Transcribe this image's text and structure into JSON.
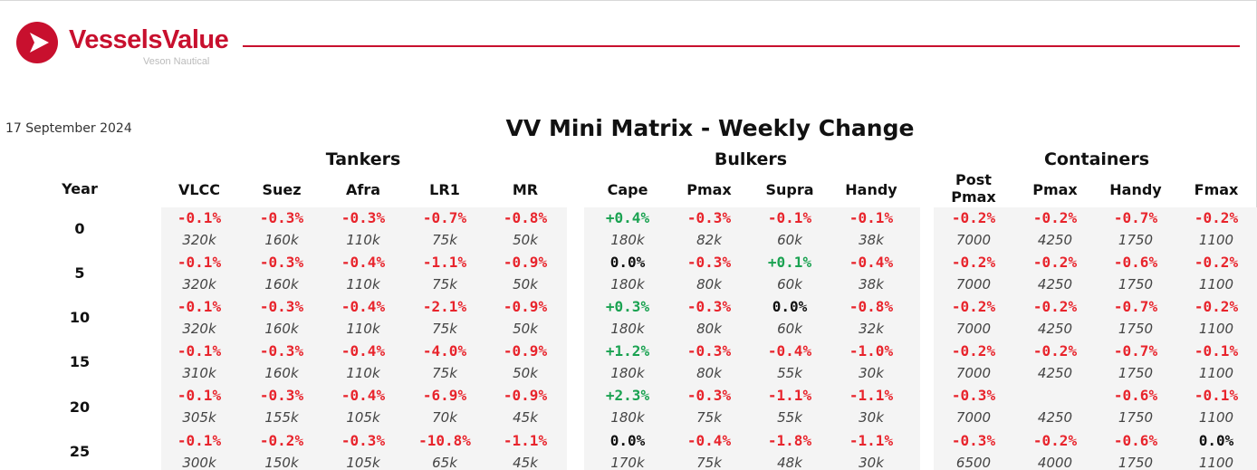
{
  "header": {
    "brand": "VesselsValue",
    "sub_brand": "Veson Nautical",
    "brand_color": "#c8102e",
    "date": "17 September 2024",
    "title": "VV Mini Matrix - Weekly Change"
  },
  "colors": {
    "negative": "#e8242c",
    "positive": "#1aa251",
    "neutral": "#111111",
    "block_bg": "#f4f4f4"
  },
  "year_header": "Year",
  "years": [
    "0",
    "5",
    "10",
    "15",
    "20",
    "25"
  ],
  "groups": [
    {
      "name": "Tankers",
      "columns": [
        {
          "label": "VLCC",
          "pct": [
            "-0.1%",
            "-0.1%",
            "-0.1%",
            "-0.1%",
            "-0.1%",
            "-0.1%"
          ],
          "values": [
            "320k",
            "320k",
            "320k",
            "310k",
            "305k",
            "300k"
          ]
        },
        {
          "label": "Suez",
          "pct": [
            "-0.3%",
            "-0.3%",
            "-0.3%",
            "-0.3%",
            "-0.3%",
            "-0.2%"
          ],
          "values": [
            "160k",
            "160k",
            "160k",
            "160k",
            "155k",
            "150k"
          ]
        },
        {
          "label": "Afra",
          "pct": [
            "-0.3%",
            "-0.4%",
            "-0.4%",
            "-0.4%",
            "-0.4%",
            "-0.3%"
          ],
          "values": [
            "110k",
            "110k",
            "110k",
            "110k",
            "105k",
            "105k"
          ]
        },
        {
          "label": "LR1",
          "pct": [
            "-0.7%",
            "-1.1%",
            "-2.1%",
            "-4.0%",
            "-6.9%",
            "-10.8%"
          ],
          "values": [
            "75k",
            "75k",
            "75k",
            "75k",
            "70k",
            "65k"
          ]
        },
        {
          "label": "MR",
          "pct": [
            "-0.8%",
            "-0.9%",
            "-0.9%",
            "-0.9%",
            "-0.9%",
            "-1.1%"
          ],
          "values": [
            "50k",
            "50k",
            "50k",
            "50k",
            "45k",
            "45k"
          ]
        }
      ]
    },
    {
      "name": "Bulkers",
      "columns": [
        {
          "label": "Cape",
          "pct": [
            "+0.4%",
            "0.0%",
            "+0.3%",
            "+1.2%",
            "+2.3%",
            "0.0%"
          ],
          "values": [
            "180k",
            "180k",
            "180k",
            "180k",
            "180k",
            "170k"
          ]
        },
        {
          "label": "Pmax",
          "pct": [
            "-0.3%",
            "-0.3%",
            "-0.3%",
            "-0.3%",
            "-0.3%",
            "-0.4%"
          ],
          "values": [
            "82k",
            "80k",
            "80k",
            "80k",
            "75k",
            "75k"
          ]
        },
        {
          "label": "Supra",
          "pct": [
            "-0.1%",
            "+0.1%",
            "0.0%",
            "-0.4%",
            "-1.1%",
            "-1.8%"
          ],
          "values": [
            "60k",
            "60k",
            "60k",
            "55k",
            "55k",
            "48k"
          ]
        },
        {
          "label": "Handy",
          "pct": [
            "-0.1%",
            "-0.4%",
            "-0.8%",
            "-1.0%",
            "-1.1%",
            "-1.1%"
          ],
          "values": [
            "38k",
            "38k",
            "32k",
            "30k",
            "30k",
            "30k"
          ]
        }
      ]
    },
    {
      "name": "Containers",
      "columns": [
        {
          "label": "Post Pmax",
          "pct": [
            "-0.2%",
            "-0.2%",
            "-0.2%",
            "-0.2%",
            "-0.3%",
            "-0.3%"
          ],
          "values": [
            "7000",
            "7000",
            "7000",
            "7000",
            "7000",
            "6500"
          ]
        },
        {
          "label": "Pmax",
          "pct": [
            "-0.2%",
            "-0.2%",
            "-0.2%",
            "-0.2%",
            "",
            "-0.2%"
          ],
          "values": [
            "4250",
            "4250",
            "4250",
            "4250",
            "4250",
            "4000"
          ]
        },
        {
          "label": "Handy",
          "pct": [
            "-0.7%",
            "-0.6%",
            "-0.7%",
            "-0.7%",
            "-0.6%",
            "-0.6%"
          ],
          "values": [
            "1750",
            "1750",
            "1750",
            "1750",
            "1750",
            "1750"
          ]
        },
        {
          "label": "Fmax",
          "pct": [
            "-0.2%",
            "-0.2%",
            "-0.2%",
            "-0.1%",
            "-0.1%",
            "0.0%"
          ],
          "values": [
            "1100",
            "1100",
            "1100",
            "1100",
            "1100",
            "1100"
          ]
        }
      ]
    }
  ]
}
